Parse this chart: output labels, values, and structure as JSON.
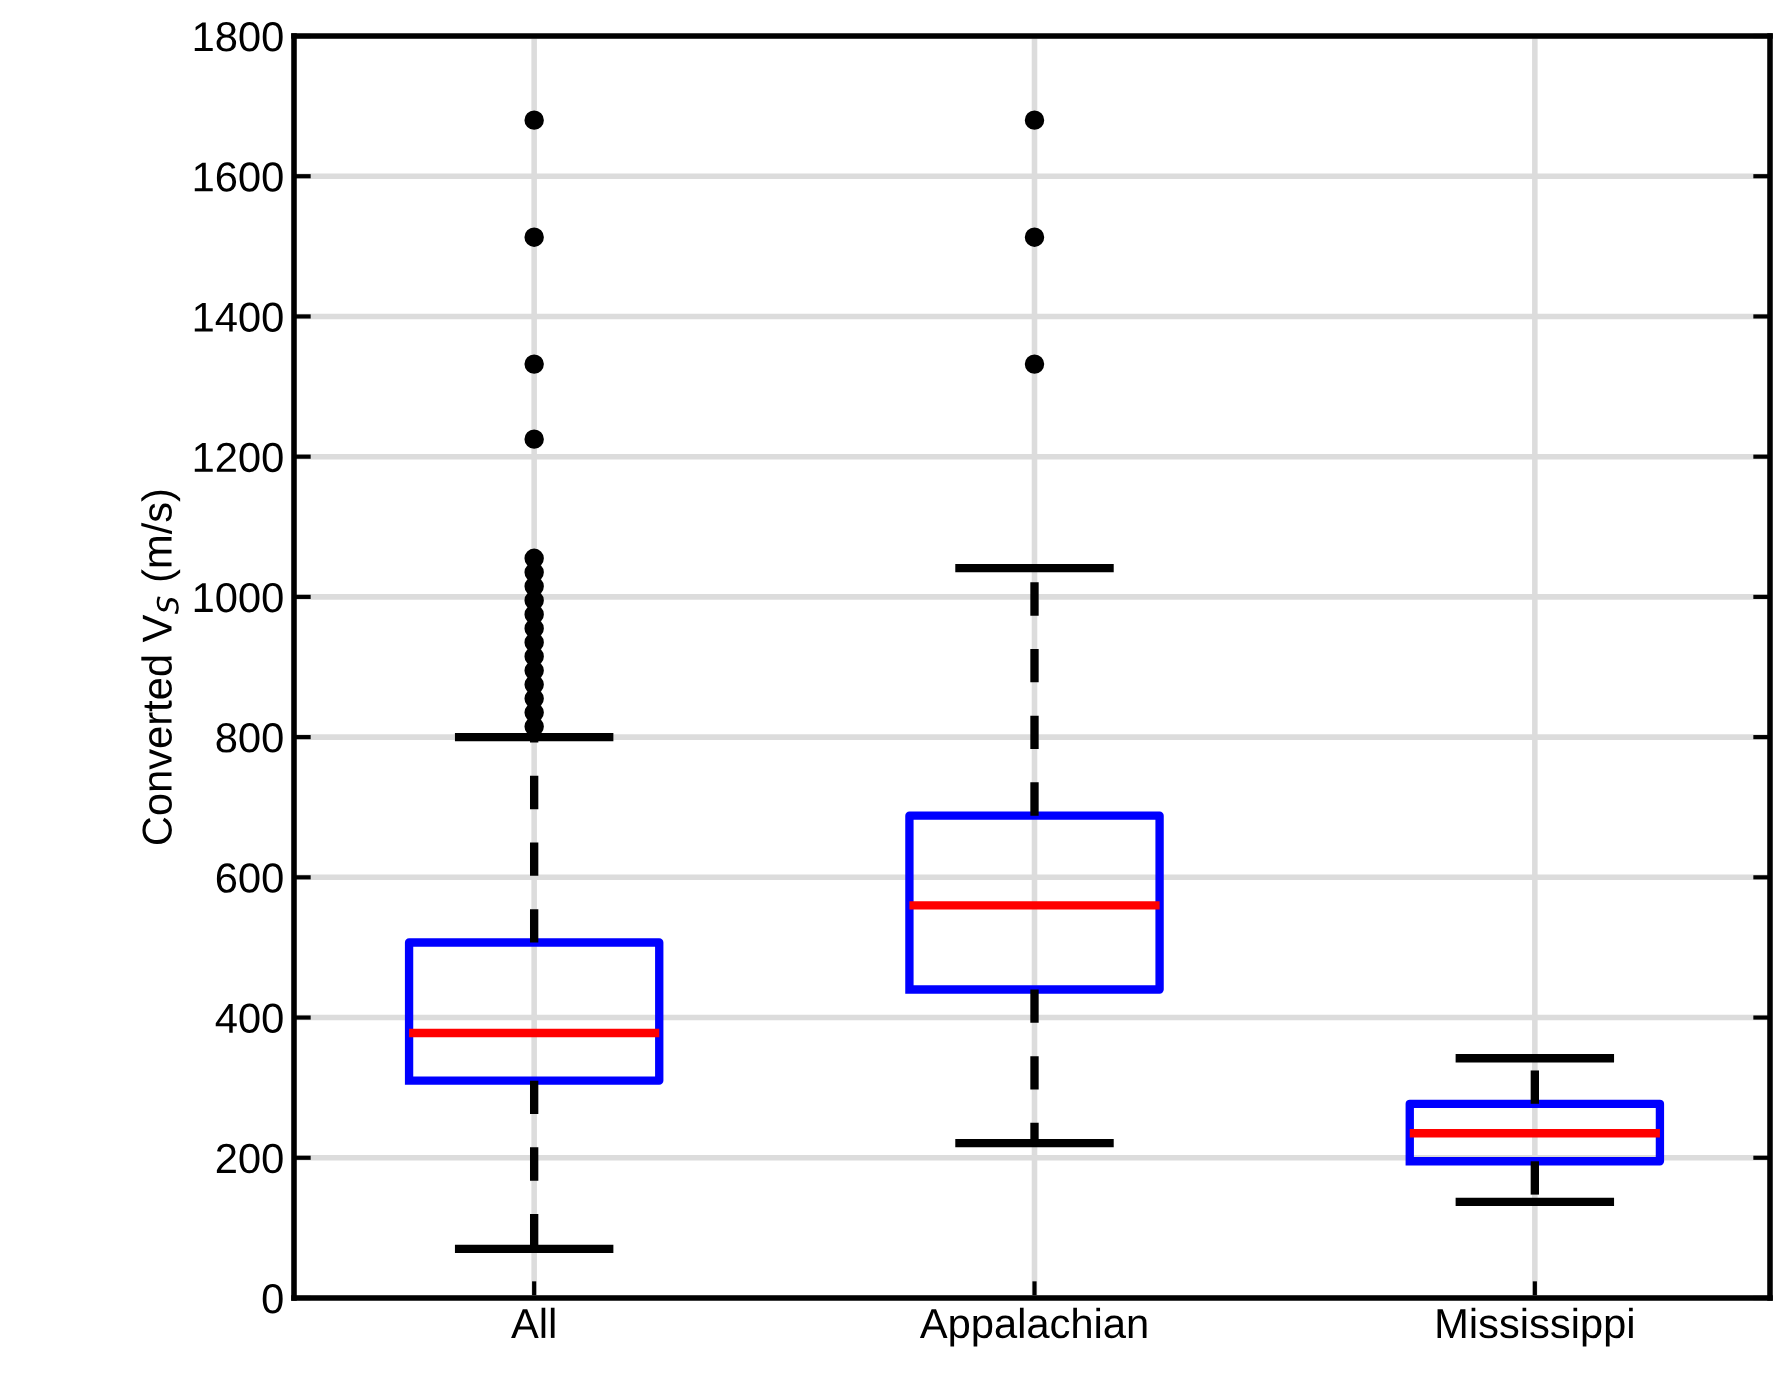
{
  "chart_data": {
    "type": "box",
    "ylabel": "Converted V$_{S}$ (m/s)",
    "categories": [
      "All",
      "Appalachian",
      "Mississippi"
    ],
    "boxes": [
      {
        "low": 70,
        "q1": 310,
        "median": 378,
        "q3": 507,
        "high": 800,
        "outliers": [
          1680,
          1513,
          1332,
          1225,
          1055,
          1035,
          1015,
          995,
          975,
          955,
          935,
          915,
          895,
          875,
          855,
          835,
          815
        ]
      },
      {
        "low": 221,
        "q1": 440,
        "median": 560,
        "q3": 688,
        "high": 1041,
        "outliers": [
          1680,
          1513,
          1332
        ]
      },
      {
        "low": 137,
        "q1": 195,
        "median": 235,
        "q3": 277,
        "high": 342
      }
    ],
    "ylim": [
      0,
      1800
    ],
    "yticks": [
      0,
      200,
      400,
      600,
      800,
      1000,
      1200,
      1400,
      1600,
      1800
    ],
    "grid": true
  }
}
